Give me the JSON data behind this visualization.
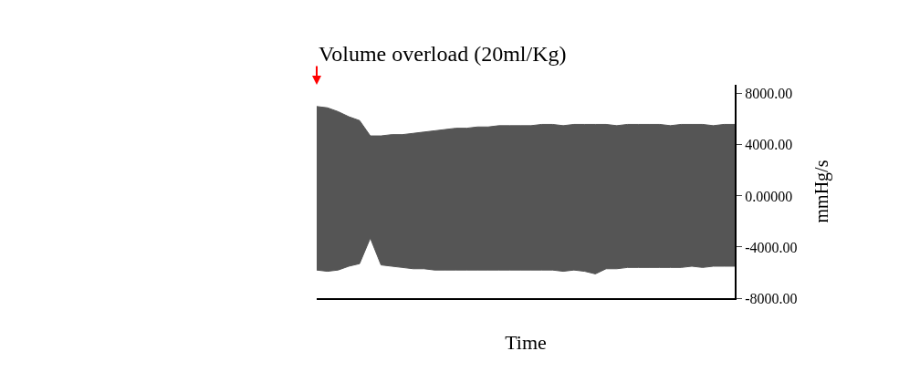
{
  "chart_data": {
    "type": "area",
    "title": "Volume overload (20ml/Kg)",
    "xlabel": "Time",
    "ylabel": "mmHg/s",
    "categories": [
      null,
      null,
      null,
      null,
      null,
      null,
      null,
      null,
      null,
      null,
      null,
      null,
      null,
      null,
      null,
      null,
      null,
      null,
      null,
      null,
      null,
      null,
      null,
      null,
      null,
      null,
      null,
      null,
      null,
      null,
      null,
      null,
      null,
      null,
      null,
      null,
      null,
      null,
      null,
      null
    ],
    "series": [
      {
        "color": "#555555",
        "values": [
          7000,
          6900,
          6600,
          6200,
          5900,
          4700,
          4700,
          4800,
          4800,
          4900,
          5000,
          5100,
          5200,
          5300,
          5300,
          5400,
          5400,
          5500,
          5500,
          5500,
          5500,
          5600,
          5600,
          5500,
          5600,
          5600,
          5600,
          5600,
          5500,
          5600,
          5600,
          5600,
          5600,
          5500,
          5600,
          5600,
          5600,
          5500,
          5600,
          5600
        ]
      },
      {
        "color": "#555555",
        "values": [
          -5800,
          -5900,
          -5800,
          -5500,
          -5300,
          -3300,
          -5400,
          -5500,
          -5600,
          -5700,
          -5700,
          -5800,
          -5800,
          -5800,
          -5800,
          -5800,
          -5800,
          -5800,
          -5800,
          -5800,
          -5800,
          -5800,
          -5800,
          -5900,
          -5800,
          -5900,
          -6100,
          -5700,
          -5700,
          -5600,
          -5600,
          -5600,
          -5600,
          -5600,
          -5600,
          -5500,
          -5600,
          -5500,
          -5500,
          -5500
        ]
      }
    ],
    "ylim": [
      -8000,
      8700
    ],
    "yticks": [
      {
        "value": 8000,
        "label": "8000.00"
      },
      {
        "value": 4000,
        "label": "4000.00"
      },
      {
        "value": 0,
        "label": "0.00000"
      },
      {
        "value": -4000,
        "label": "-4000.00"
      },
      {
        "value": -8000,
        "label": "-8000.00"
      }
    ],
    "tick_labels": "y"
  }
}
